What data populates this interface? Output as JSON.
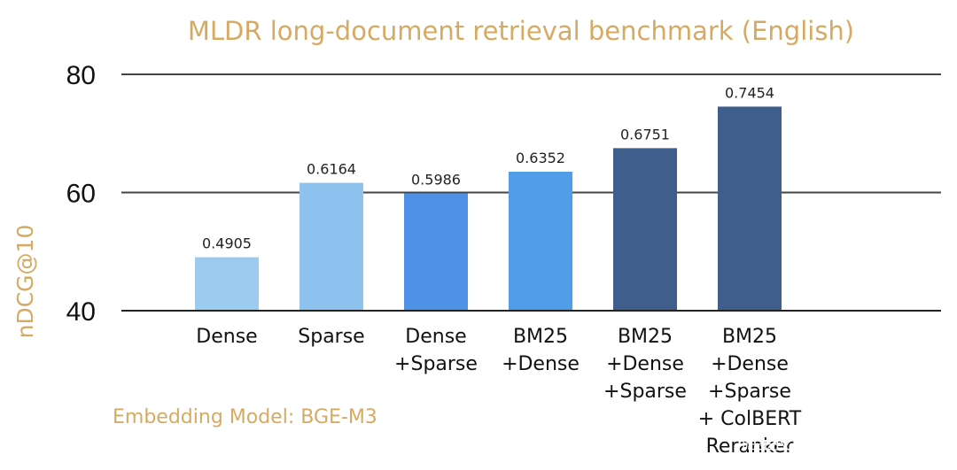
{
  "chart_data": {
    "type": "bar",
    "title": "MLDR long-document retrieval benchmark (English)",
    "ylabel": "nDCG@10",
    "xlabel": "",
    "ylim": [
      40,
      80
    ],
    "yticks": [
      40,
      60,
      80
    ],
    "grid": true,
    "categories": [
      [
        "Dense"
      ],
      [
        "Sparse"
      ],
      [
        "Dense",
        "+Sparse"
      ],
      [
        "BM25",
        "+Dense"
      ],
      [
        "BM25",
        "+Dense",
        "+Sparse"
      ],
      [
        "BM25",
        "+Dense",
        "+Sparse",
        "+ ColBERT",
        "Reranker"
      ]
    ],
    "values": [
      49.05,
      61.64,
      59.86,
      63.52,
      67.51,
      74.54
    ],
    "data_labels": [
      "0.4905",
      "0.6164",
      "0.5986",
      "0.6352",
      "0.6751",
      "0.7454"
    ],
    "colors": [
      "#9ccbf0",
      "#8ec3ef",
      "#4d92e6",
      "#519de8",
      "#3f5e8c",
      "#3f5e8c"
    ],
    "annotation": "Embedding Model: BGE-M3"
  },
  "watermark": "掘金技术社区 @Leon_vibs",
  "colors": {
    "accent_text": "#d6aa62",
    "axis": "#222222",
    "grid": "#444444"
  }
}
